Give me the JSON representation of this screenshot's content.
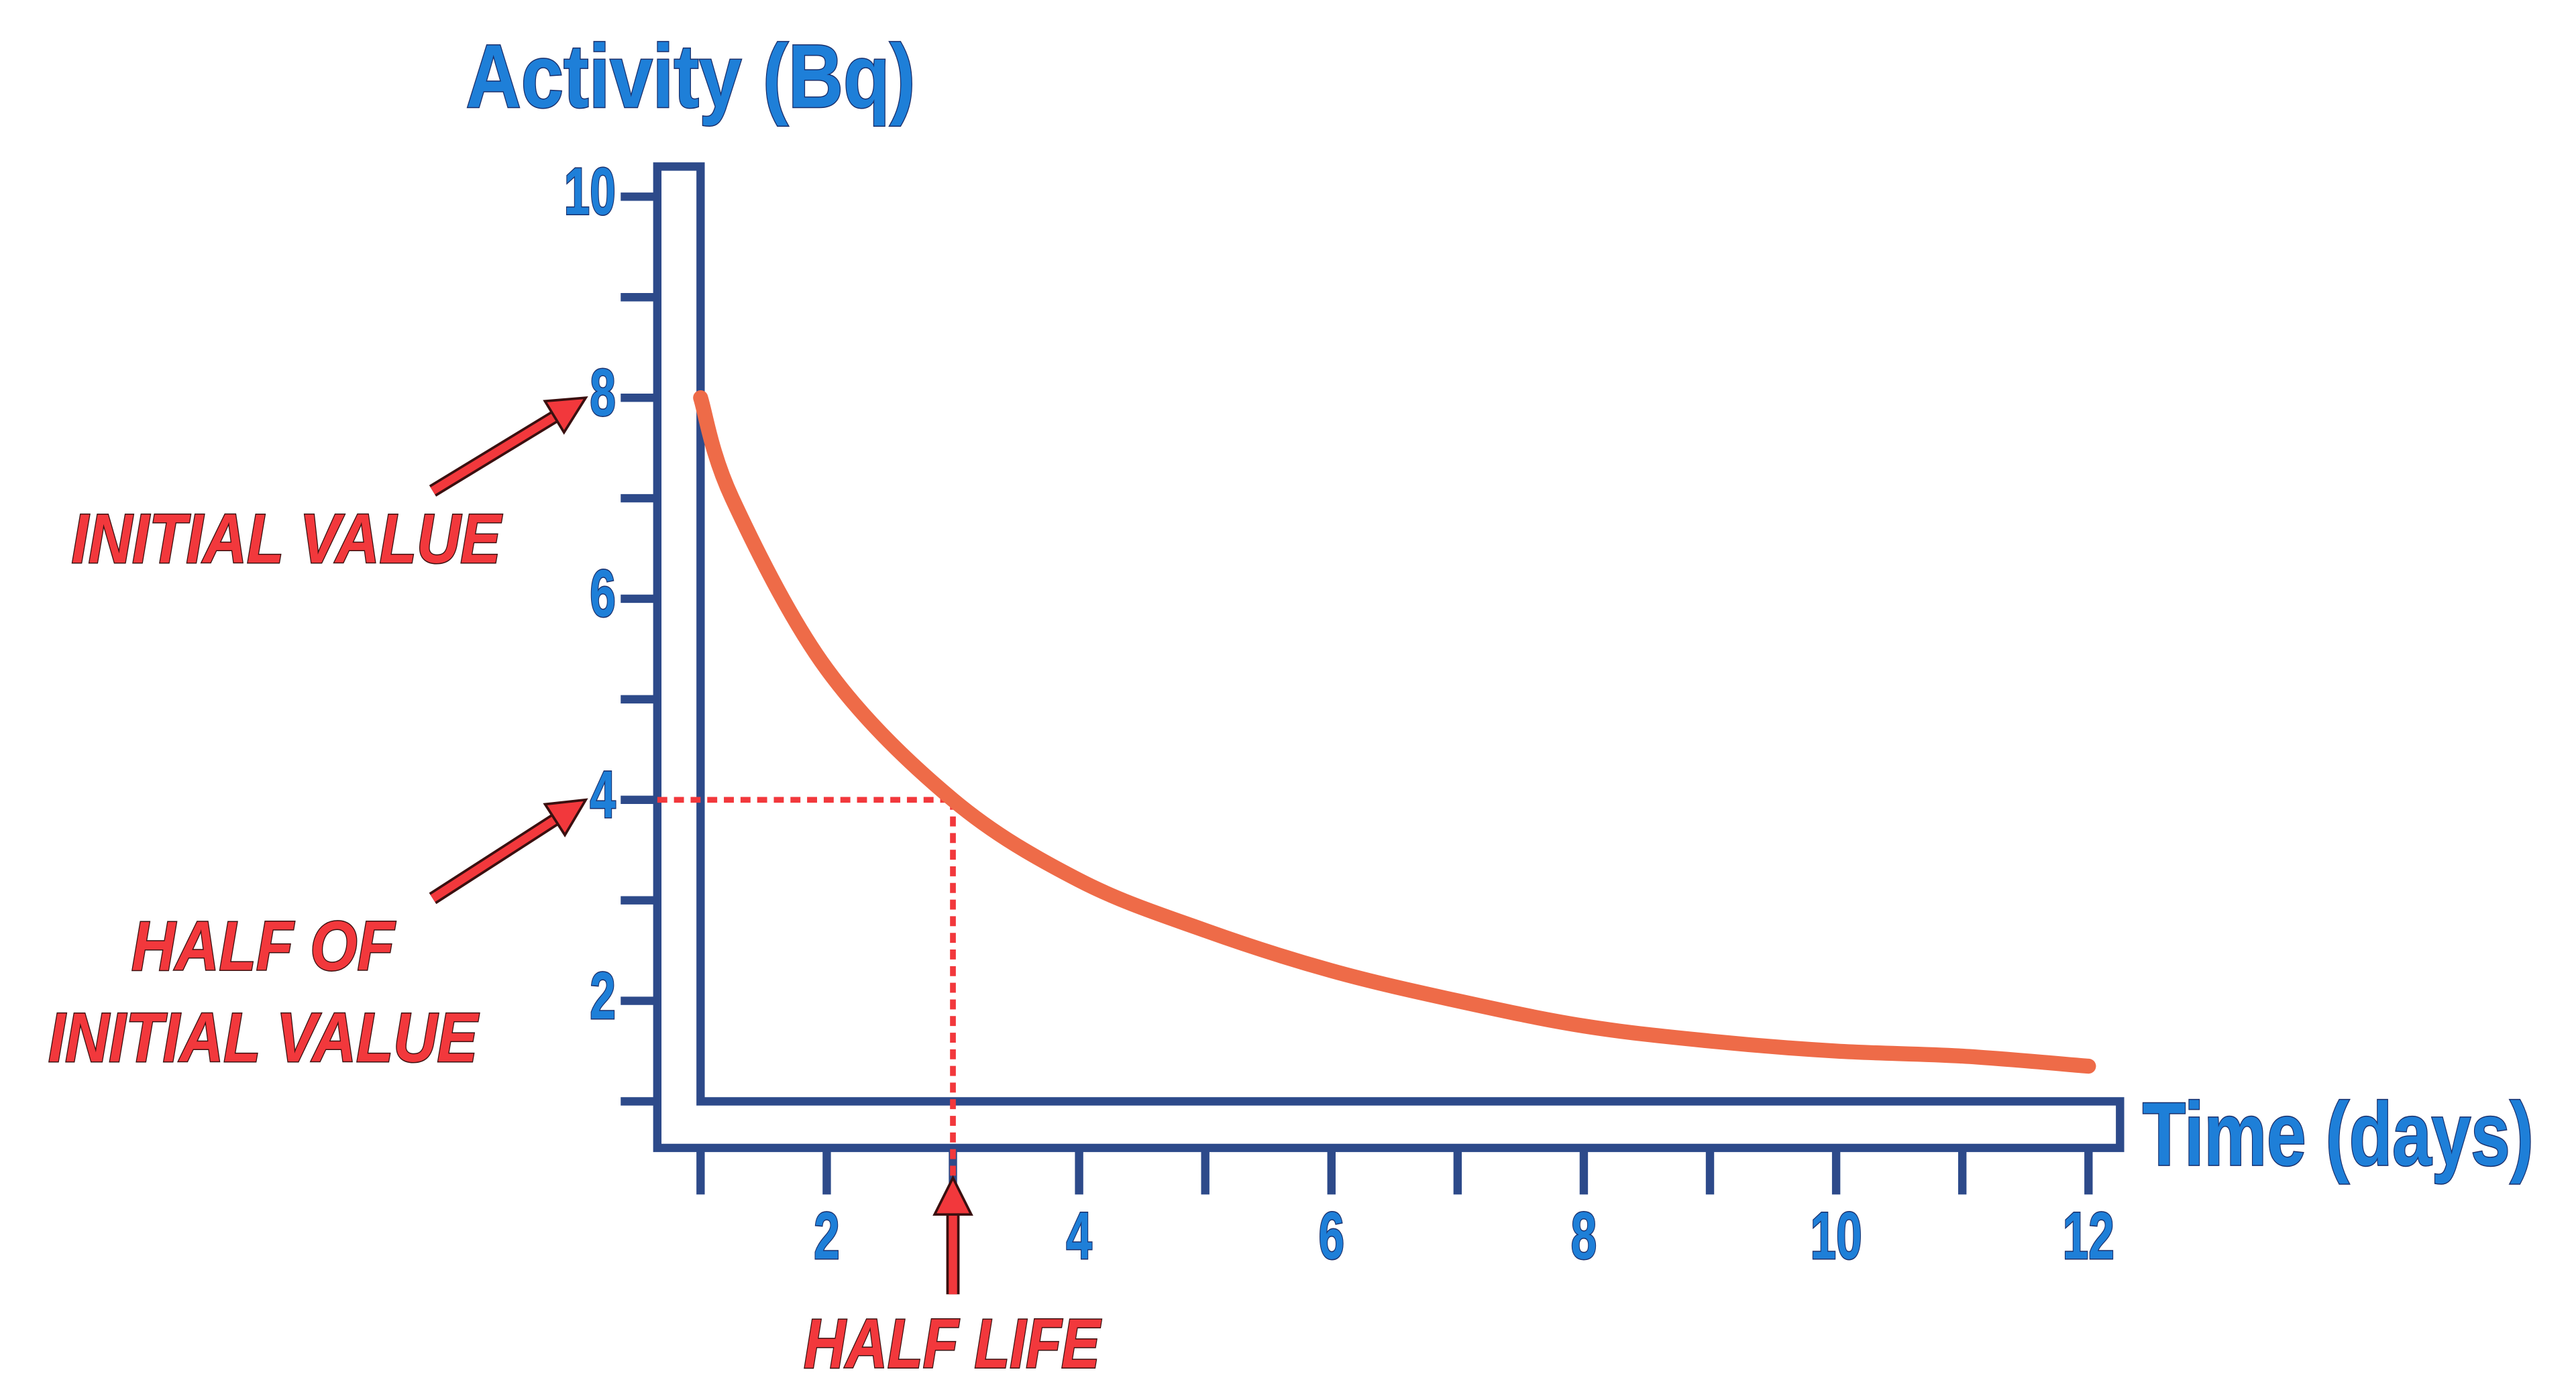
{
  "chart_data": {
    "type": "line",
    "ylabel": "Activity (Bq)",
    "xlabel": "Time (days)",
    "x": [
      1,
      1.25,
      2,
      3,
      4,
      5,
      6,
      7,
      8,
      9,
      10,
      11,
      12
    ],
    "series": [
      {
        "color": "#ee6b48",
        "values": [
          8,
          7.0,
          5.3,
          4.0,
          3.2,
          2.7,
          2.3,
          2.0,
          1.75,
          1.6,
          1.5,
          1.45,
          1.35
        ]
      }
    ],
    "xlim": [
      1,
      12.25
    ],
    "ylim": [
      1,
      10.3
    ],
    "xticks": [
      2,
      4,
      6,
      8,
      10,
      12
    ],
    "yticks": [
      2,
      4,
      6,
      8,
      10
    ],
    "minor_xticks": [
      1,
      3,
      5,
      7,
      9,
      11
    ],
    "minor_yticks": [
      1,
      3,
      5,
      7,
      9
    ],
    "half_life_marker": {
      "x": 3,
      "y": 4
    },
    "annotations": {
      "initial": "INITIAL VALUE",
      "half": [
        "HALF OF",
        "INITIAL VALUE"
      ],
      "half_life": "HALF LIFE"
    }
  }
}
